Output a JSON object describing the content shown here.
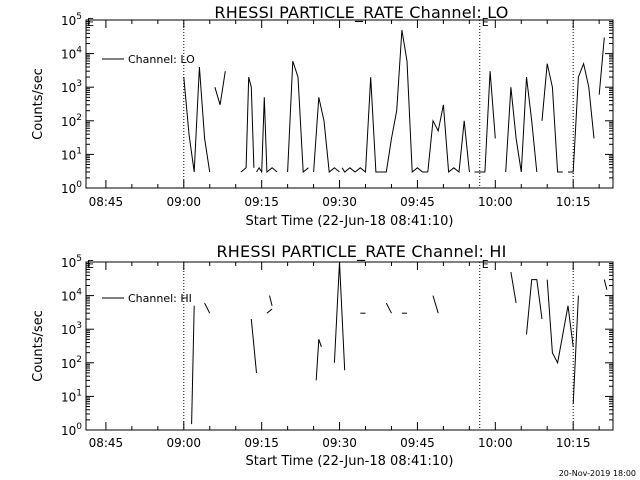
{
  "chart_data": [
    {
      "type": "line",
      "title": "RHESSI PARTICLE_RATE Channel: LO",
      "xlabel": "Start Time (22-Jun-18 08:41:10)",
      "ylabel": "Counts/sec",
      "x_ticks": [
        "08:45",
        "09:00",
        "09:15",
        "09:30",
        "09:45",
        "10:00",
        "10:15"
      ],
      "x_range": [
        "08:41:10",
        "10:22:40"
      ],
      "y_scale": "log",
      "y_range": [
        1,
        100000
      ],
      "y_ticks": [
        {
          "base": "10",
          "exp": "0"
        },
        {
          "base": "10",
          "exp": "1"
        },
        {
          "base": "10",
          "exp": "2"
        },
        {
          "base": "10",
          "exp": "3"
        },
        {
          "base": "10",
          "exp": "4"
        },
        {
          "base": "10",
          "exp": "5"
        }
      ],
      "legend": "Channel: LO",
      "legend_position": "top-left",
      "marker_lines": [
        "09:00",
        "09:57",
        "10:15"
      ],
      "marker_label": "E",
      "grid": false,
      "series": [
        {
          "name": "Channel: LO",
          "segments": [
            [
              [
                "09:00",
                "2000"
              ],
              [
                "09:01",
                "40"
              ],
              [
                "09:02",
                "3"
              ],
              [
                "09:03",
                "4000"
              ],
              [
                "09:04",
                "30"
              ],
              [
                "09:05",
                "3"
              ]
            ],
            [
              [
                "09:06",
                "1000"
              ],
              [
                "09:07",
                "300"
              ],
              [
                "09:08",
                "3000"
              ]
            ],
            [
              [
                "09:11",
                "3"
              ],
              [
                "09:12",
                "4"
              ],
              [
                "09:12.5",
                "2000"
              ],
              [
                "09:13",
                "1000"
              ],
              [
                "09:13.5",
                "4"
              ]
            ],
            [
              [
                "09:14",
                "3"
              ],
              [
                "09:14.5",
                "4"
              ],
              [
                "09:15",
                "3"
              ],
              [
                "09:15.5",
                "500"
              ],
              [
                "09:16",
                "3"
              ],
              [
                "09:17",
                "4"
              ],
              [
                "09:18",
                "3"
              ]
            ],
            [
              [
                "09:20",
                "3"
              ],
              [
                "09:21",
                "6000"
              ],
              [
                "09:22",
                "2000"
              ],
              [
                "09:23",
                "3"
              ],
              [
                "09:24",
                "4"
              ]
            ],
            [
              [
                "09:25",
                "3"
              ],
              [
                "09:26",
                "500"
              ],
              [
                "09:27",
                "100"
              ],
              [
                "09:28",
                "3"
              ],
              [
                "09:29",
                "4"
              ],
              [
                "09:30",
                "3"
              ]
            ],
            [
              [
                "09:30.5",
                "4"
              ],
              [
                "09:31",
                "3"
              ],
              [
                "09:32",
                "4"
              ],
              [
                "09:33",
                "3"
              ],
              [
                "09:34",
                "4"
              ],
              [
                "09:35",
                "3"
              ],
              [
                "09:36",
                "2000"
              ],
              [
                "09:37",
                "3"
              ],
              [
                "09:38",
                "3"
              ]
            ],
            [
              [
                "09:38",
                "3"
              ],
              [
                "09:39",
                "3"
              ],
              [
                "09:40",
                "30"
              ],
              [
                "09:41",
                "200"
              ],
              [
                "09:42",
                "50000"
              ],
              [
                "09:43",
                "6000"
              ],
              [
                "09:44",
                "3"
              ],
              [
                "09:45",
                "4"
              ],
              [
                "09:46",
                "3"
              ],
              [
                "09:47",
                "3"
              ]
            ],
            [
              [
                "09:47",
                "3"
              ],
              [
                "09:48",
                "100"
              ],
              [
                "09:49",
                "50"
              ],
              [
                "09:50",
                "300"
              ],
              [
                "09:51",
                "3"
              ],
              [
                "09:52",
                "4"
              ],
              [
                "09:53",
                "3"
              ],
              [
                "09:54",
                "100"
              ],
              [
                "09:55",
                "3"
              ]
            ],
            [
              [
                "09:56",
                "3"
              ],
              [
                "09:57",
                "3"
              ],
              [
                "09:58",
                "3"
              ],
              [
                "09:59",
                "3000"
              ],
              [
                "10:00",
                "30"
              ]
            ],
            [
              [
                "10:02",
                "3"
              ],
              [
                "10:03",
                "1000"
              ],
              [
                "10:04",
                "30"
              ],
              [
                "10:05",
                "3"
              ],
              [
                "10:06",
                "2000"
              ],
              [
                "10:07",
                "100"
              ],
              [
                "10:08",
                "3"
              ]
            ],
            [
              [
                "10:09",
                "100"
              ],
              [
                "10:10",
                "5000"
              ],
              [
                "10:11",
                "1000"
              ],
              [
                "10:12",
                "3"
              ],
              [
                "10:13",
                "3"
              ]
            ],
            [
              [
                "10:14",
                "3"
              ],
              [
                "10:15",
                "3"
              ],
              [
                "10:16",
                "2000"
              ],
              [
                "10:17",
                "5000"
              ],
              [
                "10:18",
                "1000"
              ],
              [
                "10:19",
                "30"
              ]
            ],
            [
              [
                "10:20",
                "600"
              ],
              [
                "10:21",
                "30000"
              ]
            ]
          ]
        }
      ]
    },
    {
      "type": "line",
      "title": "RHESSI PARTICLE_RATE Channel: HI",
      "xlabel": "Start Time (22-Jun-18 08:41:10)",
      "ylabel": "Counts/sec",
      "x_ticks": [
        "08:45",
        "09:00",
        "09:15",
        "09:30",
        "09:45",
        "10:00",
        "10:15"
      ],
      "x_range": [
        "08:41:10",
        "10:22:40"
      ],
      "y_scale": "log",
      "y_range": [
        1,
        100000
      ],
      "y_ticks": [
        {
          "base": "10",
          "exp": "0"
        },
        {
          "base": "10",
          "exp": "1"
        },
        {
          "base": "10",
          "exp": "2"
        },
        {
          "base": "10",
          "exp": "3"
        },
        {
          "base": "10",
          "exp": "4"
        },
        {
          "base": "10",
          "exp": "5"
        }
      ],
      "legend": "Channel: HI",
      "legend_position": "top-left",
      "marker_lines": [
        "09:00",
        "09:57",
        "10:15"
      ],
      "marker_label": "E",
      "grid": false,
      "series": [
        {
          "name": "Channel: HI",
          "segments": [
            [
              [
                "09:01.5",
                "1.5"
              ],
              [
                "09:02",
                "5000"
              ]
            ],
            [
              [
                "09:04",
                "6000"
              ],
              [
                "09:05",
                "3000"
              ]
            ],
            [
              [
                "09:13",
                "2000"
              ],
              [
                "09:14",
                "50"
              ]
            ],
            [
              [
                "09:16",
                "3000"
              ],
              [
                "09:17",
                "4000"
              ]
            ],
            [
              [
                "09:16.5",
                "10000"
              ],
              [
                "09:17",
                "5000"
              ]
            ],
            [
              [
                "09:25.5",
                "30"
              ],
              [
                "09:26",
                "500"
              ],
              [
                "09:26.5",
                "300"
              ]
            ],
            [
              [
                "09:29",
                "100"
              ],
              [
                "09:30",
                "100000"
              ],
              [
                "09:31",
                "60"
              ]
            ],
            [
              [
                "09:34",
                "3000"
              ],
              [
                "09:35",
                "3000"
              ]
            ],
            [
              [
                "09:39",
                "6000"
              ],
              [
                "09:40",
                "3000"
              ]
            ],
            [
              [
                "09:42",
                "3000"
              ],
              [
                "09:43",
                "3000"
              ]
            ],
            [
              [
                "09:48",
                "10000"
              ],
              [
                "09:49",
                "3000"
              ]
            ],
            [
              [
                "10:03",
                "50000"
              ],
              [
                "10:04",
                "6000"
              ]
            ],
            [
              [
                "10:06",
                "700"
              ],
              [
                "10:07",
                "30000"
              ],
              [
                "10:08",
                "30000"
              ],
              [
                "10:09",
                "2000"
              ]
            ],
            [
              [
                "10:10",
                "30000"
              ],
              [
                "10:11",
                "200"
              ],
              [
                "10:12",
                "100"
              ],
              [
                "10:13",
                "700"
              ],
              [
                "10:14",
                "5000"
              ],
              [
                "10:15",
                "300"
              ]
            ],
            [
              [
                "10:15",
                "6"
              ],
              [
                "10:16",
                "10000"
              ]
            ],
            [
              [
                "10:21",
                "30000"
              ],
              [
                "10:21.5",
                "15000"
              ]
            ]
          ]
        }
      ]
    }
  ],
  "footer_date": "20-Nov-2019 18:00"
}
